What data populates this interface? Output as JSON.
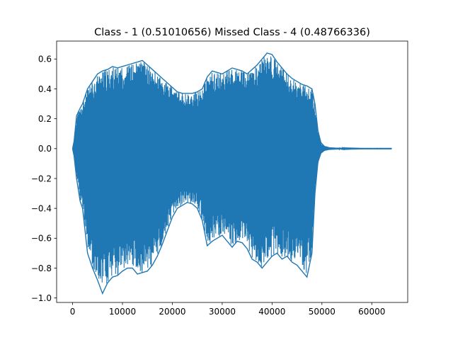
{
  "chart_data": {
    "type": "line",
    "title": "Class - 1 (0.51010656) Missed Class - 4 (0.48766336)",
    "xlabel": "",
    "ylabel": "",
    "xlim": [
      -3200,
      67200
    ],
    "ylim": [
      -1.03,
      0.72
    ],
    "grid": false,
    "x_ticks": [
      0,
      10000,
      20000,
      30000,
      40000,
      50000,
      60000
    ],
    "x_tick_labels": [
      "0",
      "10000",
      "20000",
      "30000",
      "40000",
      "50000",
      "60000"
    ],
    "y_ticks": [
      -1.0,
      -0.8,
      -0.6,
      -0.4,
      -0.2,
      0.0,
      0.2,
      0.4,
      0.6
    ],
    "y_tick_labels": [
      "−1.0",
      "−0.8",
      "−0.6",
      "−0.4",
      "−0.2",
      "0.0",
      "0.2",
      "0.4",
      "0.6"
    ],
    "series": [
      {
        "color": "#1f77b4",
        "envelope": {
          "x": [
            0,
            300,
            800,
            1500,
            2000,
            3000,
            4000,
            5000,
            6000,
            7000,
            8000,
            9000,
            10000,
            11000,
            12000,
            13000,
            14000,
            15000,
            16000,
            17000,
            18000,
            19000,
            20000,
            21000,
            22000,
            23000,
            24000,
            25000,
            26000,
            27000,
            28000,
            29000,
            30000,
            31000,
            32000,
            33000,
            34000,
            35000,
            36000,
            37000,
            38000,
            39000,
            40000,
            41000,
            42000,
            43000,
            44000,
            45000,
            46000,
            47000,
            48000,
            48600,
            49200,
            49800,
            50500,
            51500,
            53000,
            55000,
            58000,
            61000,
            64000
          ],
          "upper": [
            0.0,
            0.05,
            0.22,
            0.27,
            0.3,
            0.4,
            0.45,
            0.5,
            0.52,
            0.53,
            0.55,
            0.54,
            0.55,
            0.56,
            0.57,
            0.58,
            0.59,
            0.56,
            0.53,
            0.5,
            0.47,
            0.44,
            0.41,
            0.38,
            0.37,
            0.37,
            0.37,
            0.38,
            0.4,
            0.48,
            0.52,
            0.51,
            0.5,
            0.52,
            0.54,
            0.53,
            0.52,
            0.5,
            0.53,
            0.56,
            0.6,
            0.64,
            0.63,
            0.58,
            0.54,
            0.5,
            0.47,
            0.45,
            0.43,
            0.42,
            0.4,
            0.3,
            0.12,
            0.04,
            0.015,
            0.006,
            0.003,
            0.002,
            0.001,
            0.001,
            0.001
          ],
          "lower": [
            0.0,
            -0.05,
            -0.2,
            -0.35,
            -0.4,
            -0.7,
            -0.8,
            -0.88,
            -0.97,
            -0.9,
            -0.86,
            -0.85,
            -0.82,
            -0.8,
            -0.8,
            -0.84,
            -0.83,
            -0.82,
            -0.78,
            -0.72,
            -0.64,
            -0.55,
            -0.46,
            -0.4,
            -0.38,
            -0.36,
            -0.37,
            -0.4,
            -0.48,
            -0.65,
            -0.62,
            -0.6,
            -0.58,
            -0.62,
            -0.66,
            -0.62,
            -0.63,
            -0.67,
            -0.74,
            -0.76,
            -0.8,
            -0.76,
            -0.72,
            -0.7,
            -0.74,
            -0.72,
            -0.76,
            -0.78,
            -0.82,
            -0.86,
            -0.7,
            -0.3,
            -0.09,
            -0.03,
            -0.012,
            -0.005,
            -0.003,
            -0.002,
            -0.001,
            -0.001,
            -0.001
          ]
        }
      }
    ]
  }
}
